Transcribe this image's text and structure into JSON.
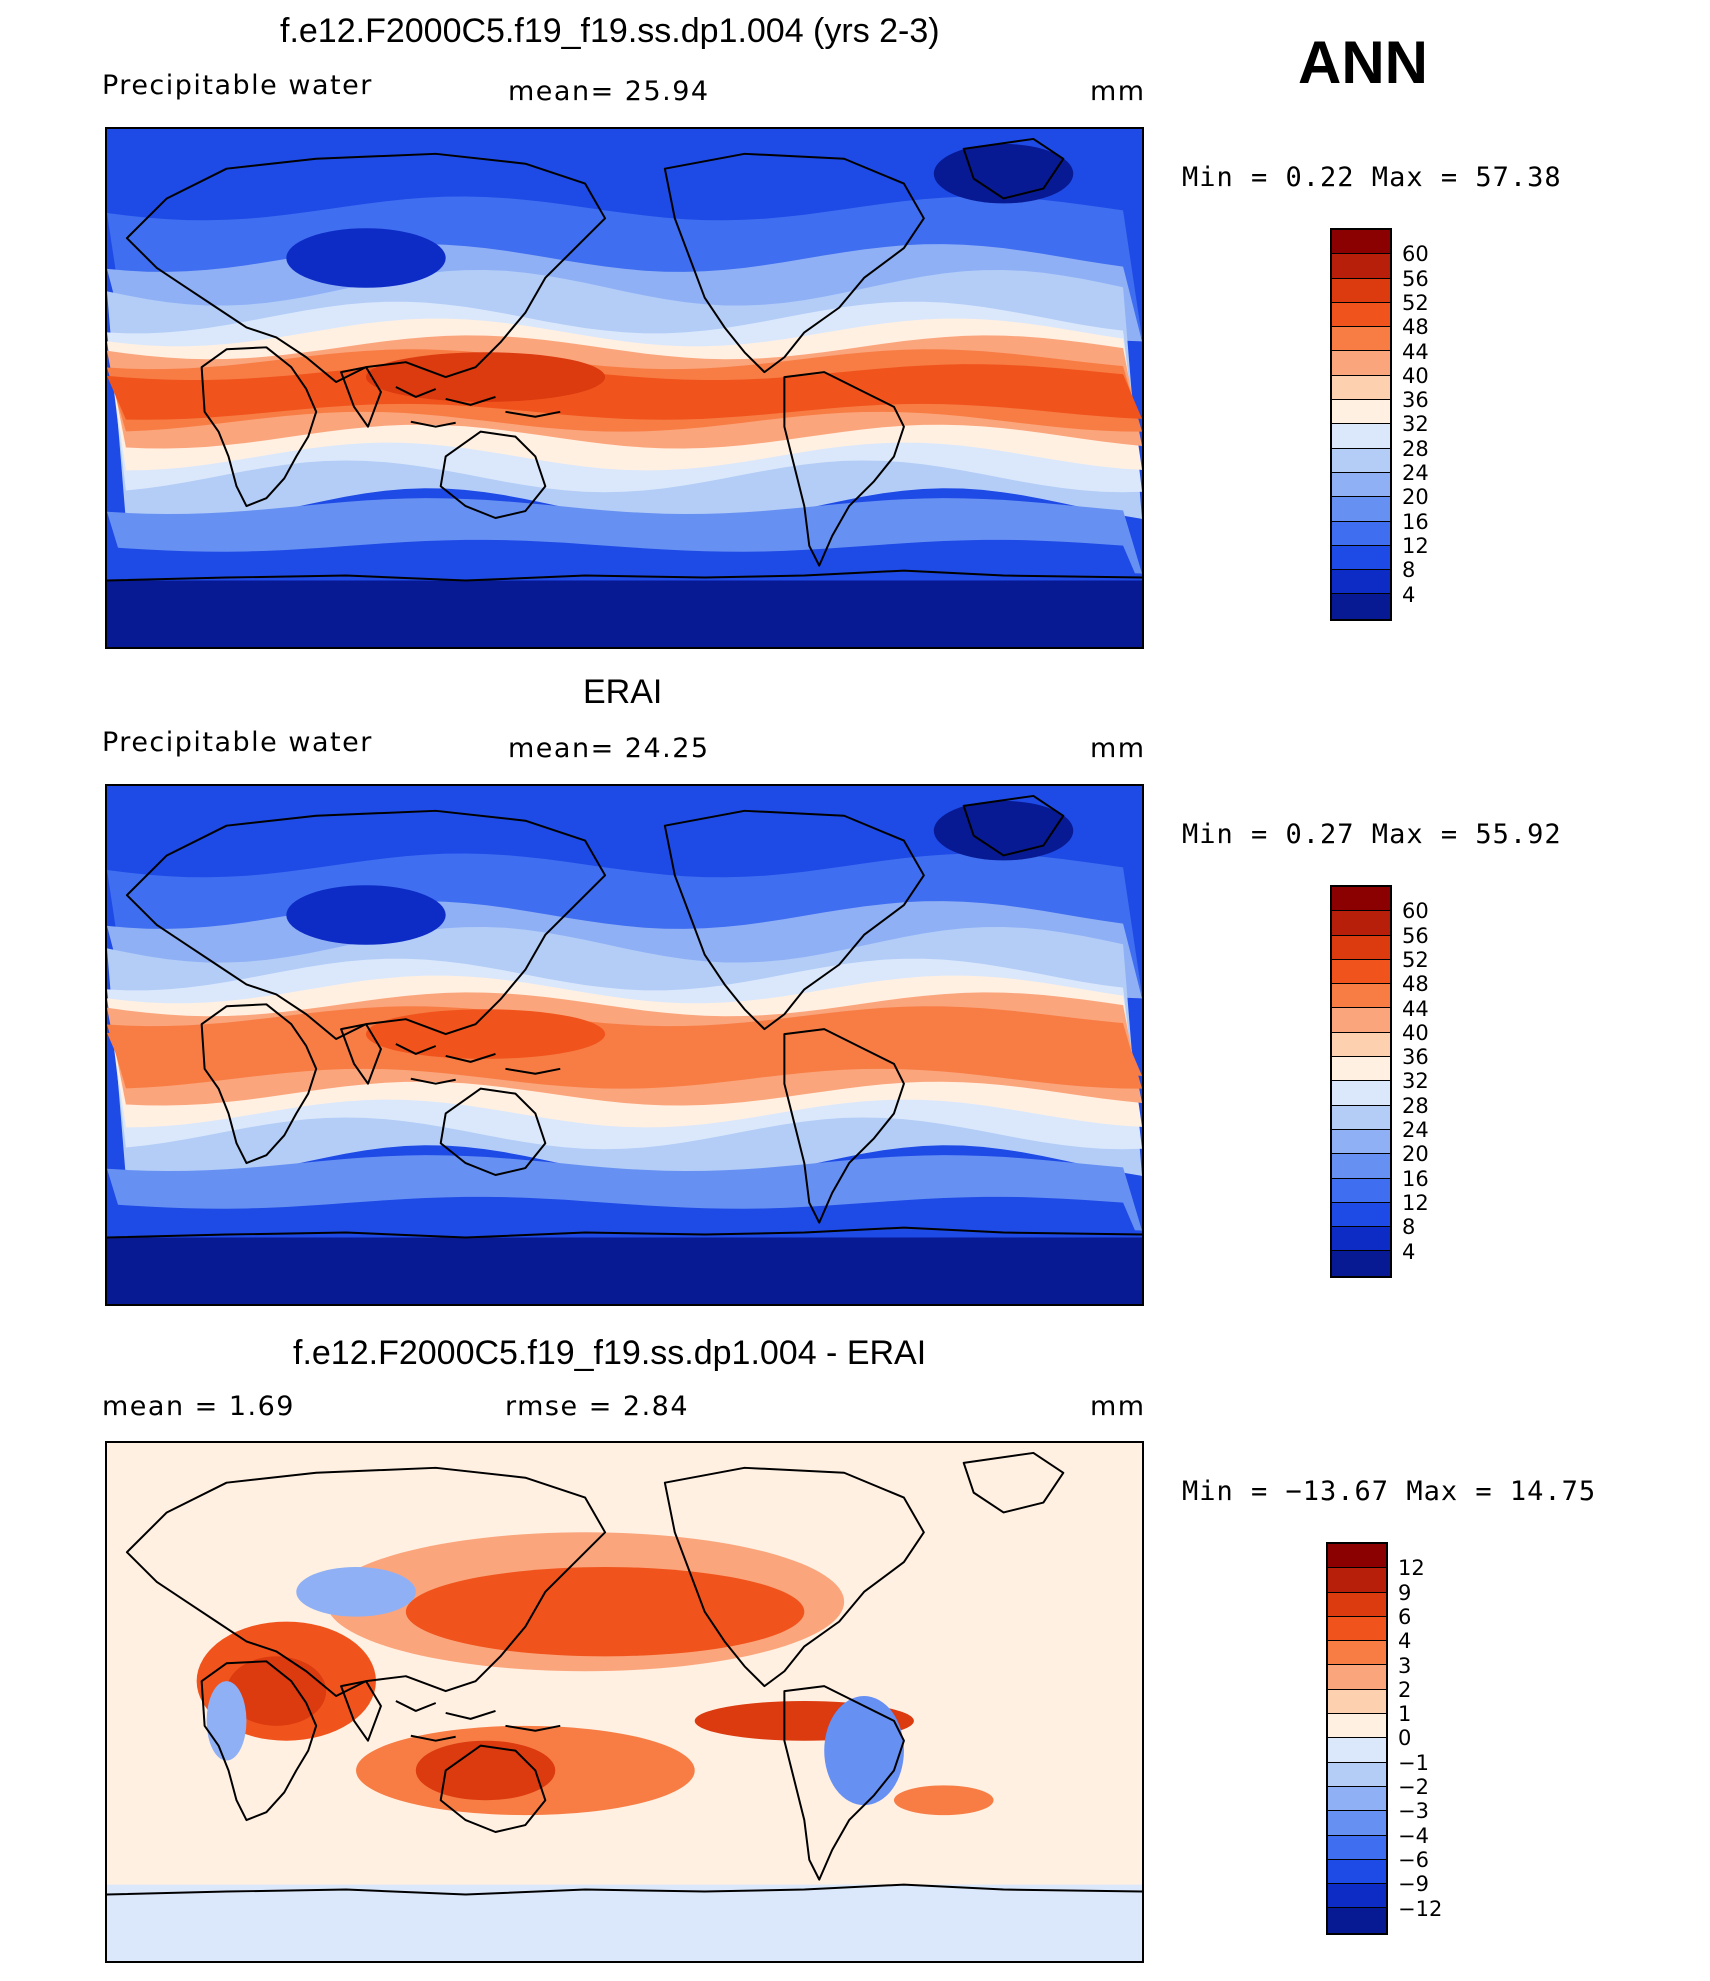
{
  "header": {
    "season": "ANN"
  },
  "panels": [
    {
      "title": "f.e12.F2000C5.f19_f19.ss.dp1.004 (yrs 2-3)",
      "left_label": "Precipitable  water",
      "center_label": "mean=   25.94",
      "units": "mm",
      "minmax": "Min  =    0.22  Max  =   57.38",
      "field": "model",
      "colorbar": {
        "labels": [
          "60",
          "56",
          "52",
          "48",
          "44",
          "40",
          "36",
          "32",
          "28",
          "24",
          "20",
          "16",
          "12",
          "8",
          "4"
        ],
        "colors": [
          "#8b0000",
          "#b81f0a",
          "#dc3a0f",
          "#f0541c",
          "#f77d45",
          "#fba57c",
          "#fdd0b0",
          "#fff0e2",
          "#dbe8fb",
          "#b3cdf7",
          "#8fb0f5",
          "#6790f3",
          "#3f6ef0",
          "#1e4ae6",
          "#0d2cc6",
          "#081a93"
        ]
      }
    },
    {
      "title": "ERAI",
      "left_label": "Precipitable  water",
      "center_label": "mean=   24.25",
      "units": "mm",
      "minmax": "Min  =    0.27  Max  =   55.92",
      "field": "obs",
      "colorbar": {
        "labels": [
          "60",
          "56",
          "52",
          "48",
          "44",
          "40",
          "36",
          "32",
          "28",
          "24",
          "20",
          "16",
          "12",
          "8",
          "4"
        ],
        "colors": [
          "#8b0000",
          "#b81f0a",
          "#dc3a0f",
          "#f0541c",
          "#f77d45",
          "#fba57c",
          "#fdd0b0",
          "#fff0e2",
          "#dbe8fb",
          "#b3cdf7",
          "#8fb0f5",
          "#6790f3",
          "#3f6ef0",
          "#1e4ae6",
          "#0d2cc6",
          "#081a93"
        ]
      }
    },
    {
      "title": "f.e12.F2000C5.f19_f19.ss.dp1.004 - ERAI",
      "left_label": "mean  =     1.69",
      "center_label": "rmse  =     2.84",
      "units": "mm",
      "minmax": "Min  = −13.67  Max  =    14.75",
      "field": "diff",
      "colorbar": {
        "labels": [
          "12",
          "9",
          "6",
          "4",
          "3",
          "2",
          "1",
          "0",
          "−1",
          "−2",
          "−3",
          "−4",
          "−6",
          "−9",
          "−12"
        ],
        "colors": [
          "#8b0000",
          "#b81f0a",
          "#dc3a0f",
          "#f0541c",
          "#f77d45",
          "#fba57c",
          "#fdd0b0",
          "#fff0e2",
          "#dbe8fb",
          "#b3cdf7",
          "#8fb0f5",
          "#6790f3",
          "#3f6ef0",
          "#1e4ae6",
          "#0d2cc6",
          "#081a93"
        ]
      }
    }
  ]
}
